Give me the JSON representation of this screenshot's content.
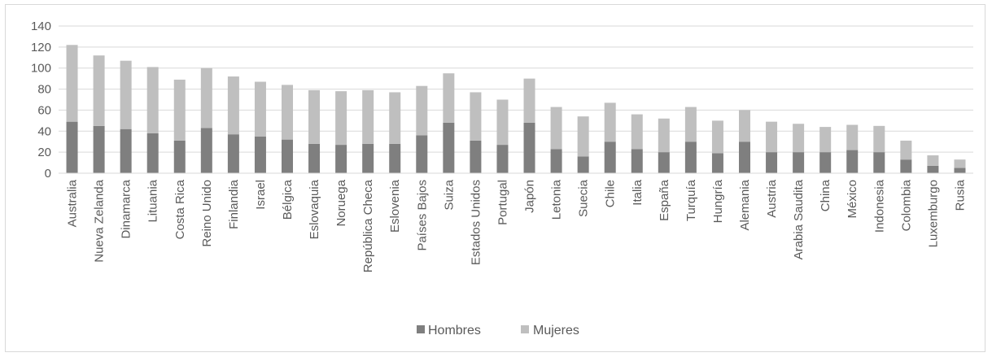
{
  "chart_data": {
    "type": "bar",
    "stacked": true,
    "categories": [
      "Australia",
      "Nueva Zelanda",
      "Dinamarca",
      "Lituania",
      "Costa Rica",
      "Reino Unido",
      "Finlandia",
      "Israel",
      "Bélgica",
      "Eslovaquia",
      "Noruega",
      "República Checa",
      "Eslovenia",
      "Países Bajos",
      "Suiza",
      "Estados Unidos",
      "Portugal",
      "Japón",
      "Letonia",
      "Suecia",
      "Chile",
      "Italia",
      "España",
      "Turquía",
      "Hungría",
      "Alemania",
      "Austria",
      "Arabia Saudita",
      "China",
      "México",
      "Indonesia",
      "Colombia",
      "Luxemburgo",
      "Rusia"
    ],
    "series": [
      {
        "name": "Hombres",
        "color": "#7f7f7f",
        "values": [
          49,
          45,
          42,
          38,
          31,
          43,
          37,
          35,
          32,
          28,
          27,
          28,
          28,
          36,
          48,
          31,
          27,
          48,
          23,
          16,
          30,
          23,
          20,
          30,
          19,
          30,
          20,
          20,
          20,
          22,
          20,
          13,
          7,
          5
        ]
      },
      {
        "name": "Mujeres",
        "color": "#bfbfbf",
        "values": [
          73,
          67,
          65,
          63,
          58,
          57,
          55,
          52,
          52,
          51,
          51,
          51,
          49,
          47,
          47,
          46,
          43,
          42,
          40,
          38,
          37,
          33,
          32,
          33,
          31,
          30,
          29,
          27,
          24,
          24,
          25,
          18,
          10,
          8
        ]
      }
    ],
    "yticks": [
      0,
      20,
      40,
      60,
      80,
      100,
      120,
      140
    ],
    "ylim": [
      0,
      140
    ],
    "grid": true,
    "legend": "bottom",
    "title": "",
    "xlabel": "",
    "ylabel": ""
  }
}
